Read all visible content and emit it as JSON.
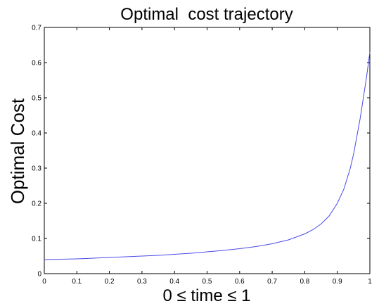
{
  "chart_data": {
    "type": "line",
    "title": "Optimal  cost trajectory",
    "xlabel": "0 ≤ time ≤ 1",
    "ylabel": "Optimal Cost",
    "xlim": [
      0,
      1
    ],
    "ylim": [
      0,
      0.7
    ],
    "xticks": [
      0,
      0.1,
      0.2,
      0.3,
      0.4,
      0.5,
      0.6,
      0.7,
      0.8,
      0.9,
      1
    ],
    "yticks": [
      0,
      0.1,
      0.2,
      0.3,
      0.4,
      0.5,
      0.6,
      0.7
    ],
    "xtick_labels": [
      "0",
      "0.1",
      "0.2",
      "0.3",
      "0.4",
      "0.5",
      "0.6",
      "0.7",
      "0.8",
      "0.9",
      "1"
    ],
    "ytick_labels": [
      "0",
      "0.1",
      "0.2",
      "0.3",
      "0.4",
      "0.5",
      "0.6",
      "0.7"
    ],
    "grid": false,
    "series": [
      {
        "color": "#4a4ae8",
        "x": [
          0,
          0.05,
          0.1,
          0.15,
          0.2,
          0.25,
          0.3,
          0.35,
          0.4,
          0.45,
          0.5,
          0.55,
          0.6,
          0.65,
          0.7,
          0.75,
          0.8,
          0.825,
          0.85,
          0.875,
          0.9,
          0.92,
          0.94,
          0.95,
          0.96,
          0.97,
          0.98,
          0.99,
          1.0
        ],
        "y": [
          0.04,
          0.041,
          0.042,
          0.044,
          0.046,
          0.048,
          0.05,
          0.052,
          0.055,
          0.058,
          0.062,
          0.066,
          0.071,
          0.077,
          0.085,
          0.096,
          0.113,
          0.125,
          0.141,
          0.164,
          0.2,
          0.24,
          0.3,
          0.34,
          0.39,
          0.44,
          0.5,
          0.56,
          0.63
        ]
      }
    ]
  }
}
